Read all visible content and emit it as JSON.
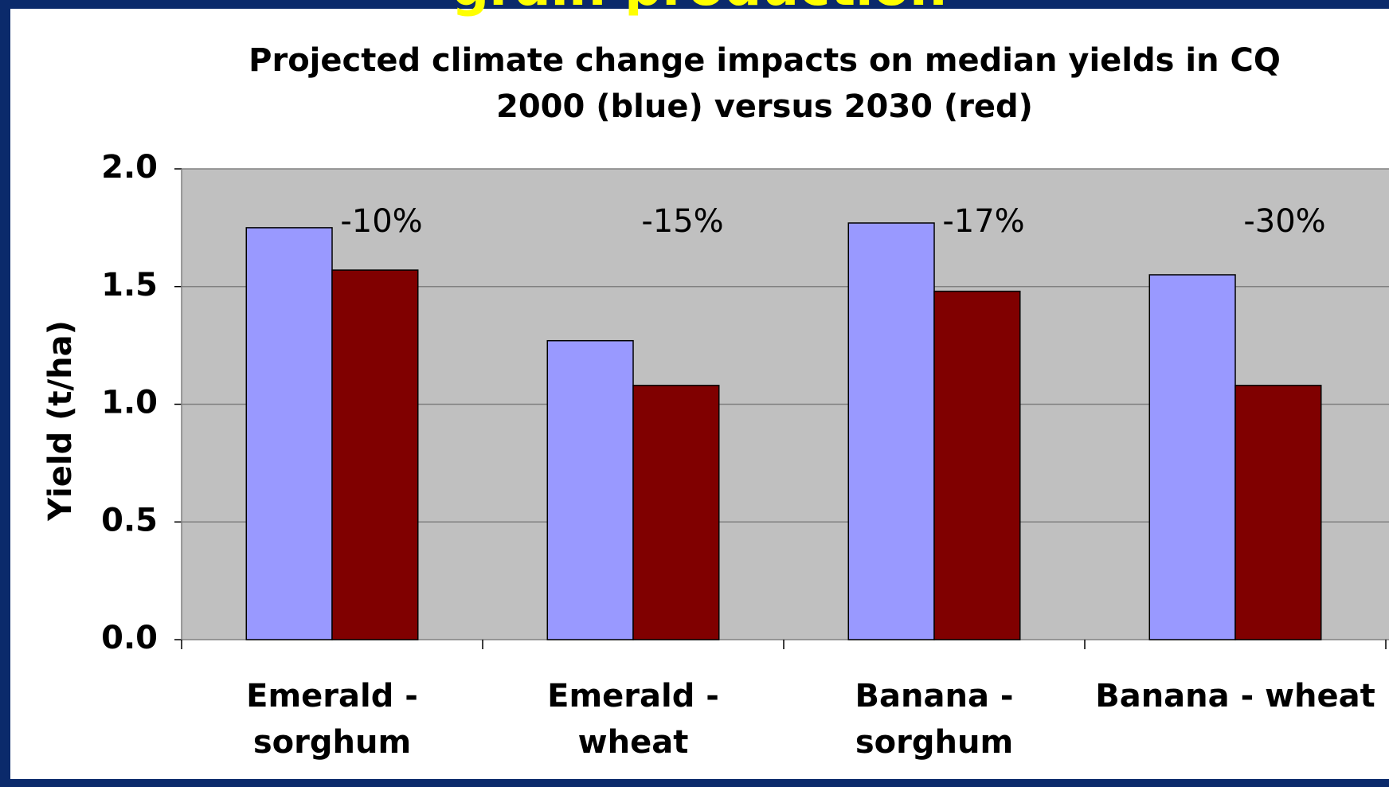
{
  "slide_title": "grain production",
  "chart_data": {
    "type": "bar",
    "title": "Projected climate change impacts on median yields in CQ",
    "subtitle": "2000 (blue) versus 2030 (red)",
    "y_label": "Yield (t/ha)",
    "categories": [
      "Emerald - sorghum",
      "Emerald - wheat",
      "Banana - sorghum",
      "Banana - wheat"
    ],
    "series": [
      {
        "color": "#9999ff",
        "values": [
          1.75,
          1.27,
          1.77,
          1.55
        ]
      },
      {
        "color": "#800000",
        "values": [
          1.57,
          1.08,
          1.48,
          1.08
        ]
      }
    ],
    "annotations": [
      "-10%",
      "-15%",
      "-17%",
      "-30%"
    ],
    "ylim": [
      0,
      2
    ],
    "yticks": [
      {
        "value": 0,
        "label": "0.0"
      },
      {
        "value": 0.5,
        "label": "0.5"
      },
      {
        "value": 1,
        "label": "1.0"
      },
      {
        "value": 1.5,
        "label": "1.5"
      },
      {
        "value": 2,
        "label": "2.0"
      }
    ],
    "grid": true
  }
}
